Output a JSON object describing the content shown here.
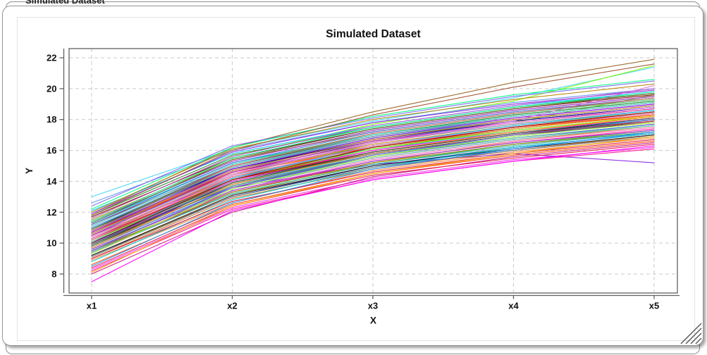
{
  "background_window": {
    "title": "Simulated Dataset"
  },
  "window": {
    "resize_grip": "resize-handle"
  },
  "chart_data": {
    "type": "line",
    "title": "Simulated Dataset",
    "xlabel": "X",
    "ylabel": "Y",
    "categories": [
      "x1",
      "x2",
      "x3",
      "x4",
      "x5"
    ],
    "y_ticks": [
      8,
      10,
      12,
      14,
      16,
      18,
      20,
      22
    ],
    "ylim": [
      6.8,
      22.6
    ],
    "grid": true,
    "grid_style": "dashed",
    "legend": "none",
    "colors": {
      "frame": "#606060",
      "grid": "#c9c9c9",
      "text": "#111111"
    },
    "series": [
      {
        "c": "#e6194b",
        "v": [
          10.2,
          14.1,
          16.0,
          17.2,
          18.1
        ]
      },
      {
        "c": "#3cb44b",
        "v": [
          9.5,
          13.2,
          15.1,
          16.4,
          17.3
        ]
      },
      {
        "c": "#f5c518",
        "v": [
          10.8,
          14.6,
          16.3,
          17.5,
          18.2
        ]
      },
      {
        "c": "#4363d8",
        "v": [
          11.0,
          14.8,
          16.6,
          17.9,
          18.8
        ]
      },
      {
        "c": "#f58231",
        "v": [
          8.9,
          12.6,
          14.7,
          15.9,
          16.8
        ]
      },
      {
        "c": "#911eb4",
        "v": [
          10.7,
          14.6,
          16.4,
          17.6,
          18.5
        ]
      },
      {
        "c": "#42d4f4",
        "v": [
          13.0,
          16.1,
          17.9,
          19.4,
          21.4
        ]
      },
      {
        "c": "#f032e6",
        "v": [
          8.3,
          12.3,
          14.2,
          15.4,
          16.2
        ]
      },
      {
        "c": "#9acd32",
        "v": [
          10.3,
          14.4,
          16.5,
          17.8,
          19.6
        ]
      },
      {
        "c": "#469990",
        "v": [
          9.9,
          13.7,
          15.6,
          16.8,
          17.7
        ]
      },
      {
        "c": "#9a6324",
        "v": [
          11.9,
          16.2,
          18.5,
          20.4,
          21.9
        ]
      },
      {
        "c": "#800000",
        "v": [
          9.8,
          13.9,
          15.8,
          17.0,
          17.8
        ]
      },
      {
        "c": "#808000",
        "v": [
          10.4,
          14.3,
          16.1,
          17.4,
          18.3
        ]
      },
      {
        "c": "#000075",
        "v": [
          9.2,
          13.0,
          15.0,
          16.2,
          17.1
        ]
      },
      {
        "c": "#1a1a1a",
        "v": [
          10.0,
          14.0,
          15.9,
          17.1,
          18.0
        ]
      },
      {
        "c": "#ff4500",
        "v": [
          8.6,
          12.5,
          14.5,
          15.7,
          16.6
        ]
      },
      {
        "c": "#00ced1",
        "v": [
          11.3,
          15.2,
          17.0,
          18.3,
          19.2
        ]
      },
      {
        "c": "#7cfc00",
        "v": [
          11.6,
          15.6,
          17.7,
          19.2,
          21.5
        ]
      },
      {
        "c": "#8a2be2",
        "v": [
          10.1,
          13.6,
          15.1,
          15.8,
          15.2
        ]
      },
      {
        "c": "#ff1493",
        "v": [
          9.4,
          13.3,
          15.3,
          16.5,
          17.4
        ]
      },
      {
        "c": "#2e8b57",
        "v": [
          10.6,
          14.5,
          16.3,
          17.5,
          18.4
        ]
      },
      {
        "c": "#daa520",
        "v": [
          9.1,
          13.1,
          15.2,
          16.6,
          17.6
        ]
      },
      {
        "c": "#dc143c",
        "v": [
          11.2,
          15.0,
          16.9,
          18.2,
          19.1
        ]
      },
      {
        "c": "#00bfff",
        "v": [
          12.1,
          15.8,
          17.6,
          18.9,
          19.8
        ]
      },
      {
        "c": "#6495ed",
        "v": [
          12.6,
          16.0,
          17.8,
          19.1,
          20.0
        ]
      },
      {
        "c": "#c71585",
        "v": [
          8.0,
          12.0,
          14.3,
          15.6,
          16.5
        ]
      },
      {
        "c": "#20b2aa",
        "v": [
          10.9,
          14.9,
          16.8,
          18.0,
          18.9
        ]
      },
      {
        "c": "#b8860b",
        "v": [
          11.5,
          15.4,
          17.2,
          18.5,
          19.4
        ]
      },
      {
        "c": "#5f9ea0",
        "v": [
          9.6,
          13.5,
          15.5,
          16.7,
          17.6
        ]
      },
      {
        "c": "#9932cc",
        "v": [
          10.5,
          14.2,
          16.0,
          17.3,
          18.2
        ]
      },
      {
        "c": "#ff69b4",
        "v": [
          9.3,
          13.4,
          15.4,
          16.6,
          17.5
        ]
      },
      {
        "c": "#228b22",
        "v": [
          11.8,
          15.7,
          17.5,
          18.8,
          19.7
        ]
      },
      {
        "c": "#4169e1",
        "v": [
          10.0,
          13.8,
          15.7,
          16.9,
          17.9
        ]
      },
      {
        "c": "#d2691e",
        "v": [
          9.0,
          12.9,
          14.8,
          16.0,
          17.0
        ]
      },
      {
        "c": "#708090",
        "v": [
          10.8,
          14.7,
          16.5,
          17.7,
          18.6
        ]
      },
      {
        "c": "#e6194b",
        "v": [
          8.4,
          12.4,
          14.4,
          15.5,
          16.4
        ]
      },
      {
        "c": "#3cb44b",
        "v": [
          11.1,
          15.1,
          17.1,
          18.4,
          19.3
        ]
      },
      {
        "c": "#4363d8",
        "v": [
          9.7,
          13.6,
          15.6,
          16.8,
          17.7
        ]
      },
      {
        "c": "#f58231",
        "v": [
          10.3,
          14.2,
          16.2,
          17.4,
          18.3
        ]
      },
      {
        "c": "#911eb4",
        "v": [
          11.4,
          15.3,
          17.3,
          18.6,
          19.5
        ]
      },
      {
        "c": "#42d4f4",
        "v": [
          10.6,
          14.4,
          16.1,
          17.2,
          18.0
        ]
      },
      {
        "c": "#f032e6",
        "v": [
          9.9,
          14.0,
          16.0,
          17.2,
          18.1
        ]
      },
      {
        "c": "#9a6324",
        "v": [
          10.2,
          13.9,
          15.8,
          17.0,
          17.9
        ]
      },
      {
        "c": "#800000",
        "v": [
          11.7,
          15.5,
          17.4,
          18.7,
          19.6
        ]
      },
      {
        "c": "#808000",
        "v": [
          9.5,
          13.3,
          15.2,
          16.4,
          17.2
        ]
      },
      {
        "c": "#000075",
        "v": [
          10.9,
          14.8,
          16.7,
          17.9,
          18.8
        ]
      },
      {
        "c": "#1a1a1a",
        "v": [
          9.2,
          13.1,
          15.0,
          16.1,
          17.0
        ]
      },
      {
        "c": "#ff4500",
        "v": [
          10.7,
          14.5,
          16.2,
          17.5,
          18.3
        ]
      },
      {
        "c": "#00ced1",
        "v": [
          8.8,
          12.8,
          14.9,
          16.2,
          17.1
        ]
      },
      {
        "c": "#7cfc00",
        "v": [
          10.1,
          14.1,
          16.1,
          17.3,
          18.2
        ]
      },
      {
        "c": "#8a2be2",
        "v": [
          11.9,
          15.9,
          17.8,
          19.0,
          19.9
        ]
      },
      {
        "c": "#ff1493",
        "v": [
          8.2,
          12.2,
          14.1,
          15.3,
          16.1
        ]
      },
      {
        "c": "#2e8b57",
        "v": [
          9.8,
          13.7,
          15.7,
          17.0,
          18.0
        ]
      },
      {
        "c": "#daa520",
        "v": [
          10.4,
          14.4,
          16.4,
          17.6,
          18.5
        ]
      },
      {
        "c": "#dc143c",
        "v": [
          9.0,
          12.7,
          14.6,
          15.8,
          16.7
        ]
      },
      {
        "c": "#00bfff",
        "v": [
          10.0,
          14.2,
          16.3,
          17.6,
          18.6
        ]
      },
      {
        "c": "#6495ed",
        "v": [
          11.0,
          15.0,
          16.9,
          18.1,
          19.0
        ]
      },
      {
        "c": "#c71585",
        "v": [
          10.5,
          14.6,
          16.6,
          17.8,
          18.7
        ]
      },
      {
        "c": "#20b2aa",
        "v": [
          9.4,
          13.2,
          15.1,
          16.3,
          17.2
        ]
      },
      {
        "c": "#b8860b",
        "v": [
          12.0,
          16.1,
          18.0,
          19.3,
          20.3
        ]
      },
      {
        "c": "#5f9ea0",
        "v": [
          10.8,
          14.9,
          16.9,
          18.2,
          19.1
        ]
      },
      {
        "c": "#9932cc",
        "v": [
          9.6,
          13.4,
          15.3,
          16.5,
          17.3
        ]
      },
      {
        "c": "#ff69b4",
        "v": [
          10.2,
          14.3,
          16.3,
          17.5,
          18.4
        ]
      },
      {
        "c": "#228b22",
        "v": [
          10.9,
          15.0,
          17.0,
          18.3,
          19.2
        ]
      },
      {
        "c": "#4169e1",
        "v": [
          11.2,
          15.2,
          17.2,
          18.5,
          19.4
        ]
      },
      {
        "c": "#d2691e",
        "v": [
          10.6,
          14.7,
          16.7,
          18.0,
          18.9
        ]
      },
      {
        "c": "#708090",
        "v": [
          9.1,
          13.0,
          14.9,
          16.0,
          16.9
        ]
      },
      {
        "c": "#b22222",
        "v": [
          10.3,
          14.1,
          15.9,
          17.1,
          17.9
        ]
      },
      {
        "c": "#00fa9a",
        "v": [
          11.4,
          15.5,
          17.5,
          18.8,
          19.8
        ]
      },
      {
        "c": "#7b68ee",
        "v": [
          12.4,
          16.3,
          18.1,
          19.5,
          20.5
        ]
      },
      {
        "c": "#ff8c00",
        "v": [
          9.7,
          13.8,
          15.9,
          17.2,
          18.2
        ]
      },
      {
        "c": "#66cdaa",
        "v": [
          10.1,
          13.9,
          15.7,
          16.8,
          17.6
        ]
      },
      {
        "c": "#ba55d3",
        "v": [
          11.6,
          15.6,
          17.6,
          18.9,
          20.0
        ]
      },
      {
        "c": "#1e90ff",
        "v": [
          8.5,
          12.6,
          14.8,
          16.1,
          17.2
        ]
      },
      {
        "c": "#adff2f",
        "v": [
          9.3,
          13.5,
          15.6,
          16.9,
          17.8
        ]
      },
      {
        "c": "#ff00ff",
        "v": [
          7.5,
          12.1,
          14.1,
          15.3,
          16.3
        ]
      },
      {
        "c": "#8b0000",
        "v": [
          10.0,
          14.1,
          16.2,
          17.5,
          18.5
        ]
      },
      {
        "c": "#48d1cc",
        "v": [
          11.1,
          15.1,
          17.0,
          18.2,
          19.1
        ]
      },
      {
        "c": "#9400d3",
        "v": [
          10.7,
          14.8,
          16.8,
          18.1,
          19.0
        ]
      },
      {
        "c": "#ffa500",
        "v": [
          8.1,
          12.4,
          14.5,
          15.8,
          16.9
        ]
      },
      {
        "c": "#556b2f",
        "v": [
          11.3,
          15.4,
          17.4,
          18.7,
          19.7
        ]
      },
      {
        "c": "#ee82ee",
        "v": [
          10.4,
          14.5,
          16.5,
          17.8,
          18.8
        ]
      },
      {
        "c": "#2f4f4f",
        "v": [
          9.9,
          13.9,
          15.9,
          17.1,
          18.1
        ]
      },
      {
        "c": "#cd5c5c",
        "v": [
          10.8,
          15.0,
          17.1,
          18.4,
          19.4
        ]
      },
      {
        "c": "#00ff7f",
        "v": [
          12.2,
          16.2,
          18.2,
          19.6,
          20.6
        ]
      },
      {
        "c": "#6a5acd",
        "v": [
          9.5,
          13.6,
          15.7,
          17.0,
          18.0
        ]
      },
      {
        "c": "#a0522d",
        "v": [
          11.8,
          16.0,
          18.3,
          20.1,
          21.6
        ]
      },
      {
        "c": "#da70d6",
        "v": [
          10.3,
          14.4,
          16.5,
          17.9,
          20.2
        ]
      }
    ]
  }
}
